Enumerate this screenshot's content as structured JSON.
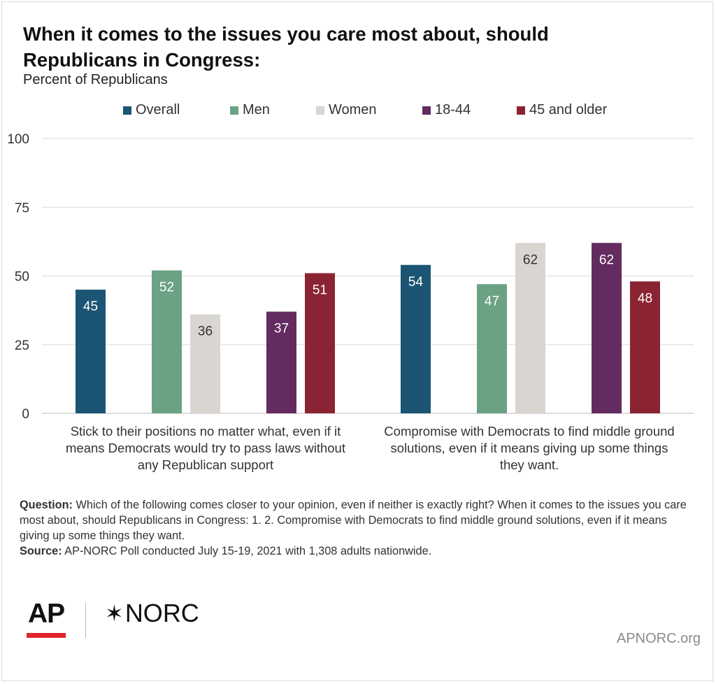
{
  "title": "When it comes to the issues you care most about, should Republicans in Congress:",
  "subtitle": "Percent of Republicans",
  "legend": [
    {
      "label": "Overall",
      "color": "#1b5573"
    },
    {
      "label": "Men",
      "color": "#6aa283"
    },
    {
      "label": "Women",
      "color": "#d9d5d0"
    },
    {
      "label": "18-44",
      "color": "#632b5f"
    },
    {
      "label": "45 and older",
      "color": "#8b2432"
    }
  ],
  "chart_data": {
    "type": "bar",
    "categories": [
      "Stick to their positions no matter what, even if it means Democrats would try to pass laws without any Republican support",
      "Compromise with Democrats to find middle ground solutions, even if it means giving up some things they want."
    ],
    "category_lines": [
      [
        "Stick to their positions no matter what, even if it",
        "means Democrats would try to pass laws without",
        "any Republican support"
      ],
      [
        "Compromise with Democrats to find middle ground",
        "solutions, even if it means giving up some things",
        "they want."
      ]
    ],
    "series": [
      {
        "name": "Overall",
        "color": "#1b5573",
        "values": [
          45,
          54
        ]
      },
      {
        "name": "Men",
        "color": "#6aa283",
        "values": [
          52,
          47
        ]
      },
      {
        "name": "Women",
        "color": "#d9d5d0",
        "values": [
          36,
          62
        ]
      },
      {
        "name": "18-44",
        "color": "#632b5f",
        "values": [
          37,
          62
        ]
      },
      {
        "name": "45 and older",
        "color": "#8b2432",
        "values": [
          51,
          48
        ]
      }
    ],
    "ylim": [
      0,
      100
    ],
    "yticks": [
      0,
      25,
      50,
      75,
      100
    ],
    "grid": true,
    "data_labels": true,
    "legend_position": "top"
  },
  "note": {
    "question_label": "Question:",
    "question_text": "Which of the following comes closer to your opinion, even if neither is exactly right? When it comes to the issues you care most about, should Republicans in Congress: 1. 2. Compromise with Democrats to find middle ground solutions, even if it means giving up some things they want.",
    "source_label": "Source:",
    "source_text": "AP-NORC Poll  conducted July 15-19, 2021 with 1,308 adults nationwide."
  },
  "logos": {
    "ap": "AP",
    "norc": "NORC",
    "norc_mark": "✶"
  },
  "footer_url": "APNORC.org"
}
